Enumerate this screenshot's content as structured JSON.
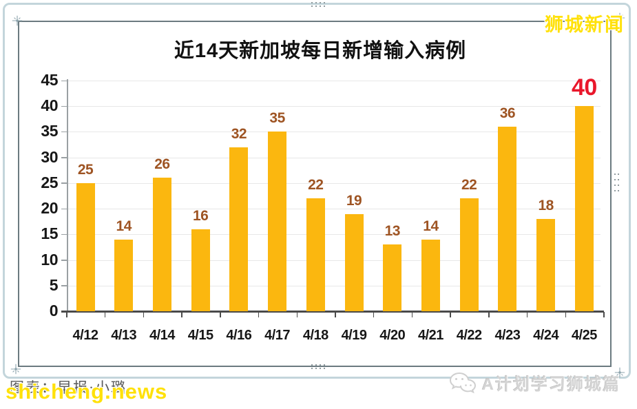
{
  "watermarks": {
    "top_right": "狮城新闻",
    "bottom_left_gray": "图表：早报·小璐",
    "bottom_left_yellow": "shicheng.news",
    "bottom_right": "A计划学习狮城篇",
    "yellow_color": "#FFE10A"
  },
  "chart_data": {
    "type": "bar",
    "title": "近14天新加坡每日新增输入病例",
    "categories": [
      "4/12",
      "4/13",
      "4/14",
      "4/15",
      "4/16",
      "4/17",
      "4/18",
      "4/19",
      "4/20",
      "4/21",
      "4/22",
      "4/23",
      "4/24",
      "4/25"
    ],
    "values": [
      25,
      14,
      26,
      16,
      32,
      35,
      22,
      19,
      13,
      14,
      22,
      36,
      18,
      40
    ],
    "xlabel": "",
    "ylabel": "",
    "ylim": [
      0,
      45
    ],
    "ytick_step": 5,
    "grid": true,
    "legend": "none",
    "bar_color": "#FBB70F",
    "value_label_color": "#9E5423",
    "highlight": {
      "index": 13,
      "color": "#E9172B"
    },
    "axis_color": "#4A4A4A",
    "grid_color": "#E7E7E7"
  }
}
